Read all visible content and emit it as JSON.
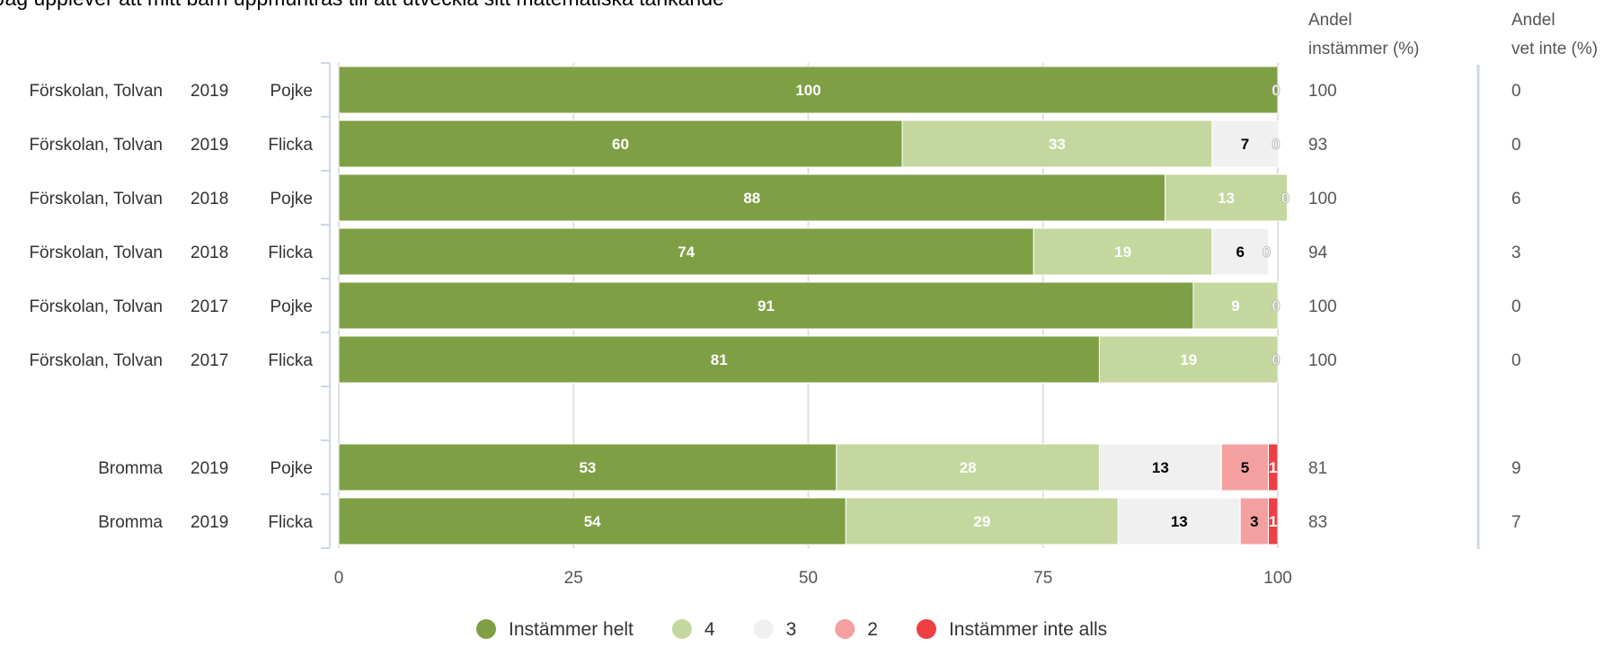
{
  "chart_data": {
    "type": "bar",
    "stacked": true,
    "orientation": "horizontal",
    "title": "Jag upplever att mitt barn uppmuntras till att utveckla sitt matematiska tänkande",
    "xlim": [
      0,
      100
    ],
    "x_ticks": [
      "0",
      "25",
      "50",
      "75",
      "100"
    ],
    "grid": true,
    "legend_position": "bottom",
    "right_columns": [
      {
        "header_line1": "Andel",
        "header_line2": "instämmer (%)"
      },
      {
        "header_line1": "Andel",
        "header_line2": "vet inte (%)"
      }
    ],
    "series": [
      {
        "name": "Instämmer helt",
        "color": "#7f9f45",
        "label_color": "#ffffff"
      },
      {
        "name": "4",
        "color": "#c4d79e",
        "label_color": "#ffffff"
      },
      {
        "name": "3",
        "color": "#f0f0f0",
        "label_color": "#000000"
      },
      {
        "name": "2",
        "color": "#f4a0a0",
        "label_color": "#000000"
      },
      {
        "name": "Instämmer inte alls",
        "color": "#ee3f44",
        "label_color": "#ffffff"
      }
    ],
    "rows": [
      {
        "unit": "Förskolan, Tolvan",
        "year": "2019",
        "gender": "Pojke",
        "values": [
          100,
          0,
          0,
          0,
          0
        ],
        "labels": [
          "100",
          "",
          "",
          "",
          "0"
        ],
        "andel_instammer": "100",
        "andel_vet_inte": "0"
      },
      {
        "unit": "Förskolan, Tolvan",
        "year": "2019",
        "gender": "Flicka",
        "values": [
          60,
          33,
          7,
          0,
          0
        ],
        "labels": [
          "60",
          "33",
          "7",
          "",
          "0"
        ],
        "andel_instammer": "93",
        "andel_vet_inte": "0"
      },
      {
        "unit": "Förskolan, Tolvan",
        "year": "2018",
        "gender": "Pojke",
        "values": [
          88,
          13,
          0,
          0,
          0
        ],
        "labels": [
          "88",
          "13",
          "",
          "",
          "0"
        ],
        "andel_instammer": "100",
        "andel_vet_inte": "6"
      },
      {
        "unit": "Förskolan, Tolvan",
        "year": "2018",
        "gender": "Flicka",
        "values": [
          74,
          19,
          6,
          0,
          0
        ],
        "labels": [
          "74",
          "19",
          "6",
          "",
          "0"
        ],
        "andel_instammer": "94",
        "andel_vet_inte": "3"
      },
      {
        "unit": "Förskolan, Tolvan",
        "year": "2017",
        "gender": "Pojke",
        "values": [
          91,
          9,
          0,
          0,
          0
        ],
        "labels": [
          "91",
          "9",
          "",
          "",
          "0"
        ],
        "andel_instammer": "100",
        "andel_vet_inte": "0"
      },
      {
        "unit": "Förskolan, Tolvan",
        "year": "2017",
        "gender": "Flicka",
        "values": [
          81,
          19,
          0,
          0,
          0
        ],
        "labels": [
          "81",
          "19",
          "",
          "",
          "0"
        ],
        "andel_instammer": "100",
        "andel_vet_inte": "0"
      },
      {
        "spacer": true
      },
      {
        "unit": "Bromma",
        "year": "2019",
        "gender": "Pojke",
        "values": [
          53,
          28,
          13,
          5,
          1
        ],
        "labels": [
          "53",
          "28",
          "13",
          "5",
          "1"
        ],
        "andel_instammer": "81",
        "andel_vet_inte": "9"
      },
      {
        "unit": "Bromma",
        "year": "2019",
        "gender": "Flicka",
        "values": [
          54,
          29,
          13,
          3,
          1
        ],
        "labels": [
          "54",
          "29",
          "13",
          "3",
          "1"
        ],
        "andel_instammer": "83",
        "andel_vet_inte": "7"
      }
    ]
  }
}
